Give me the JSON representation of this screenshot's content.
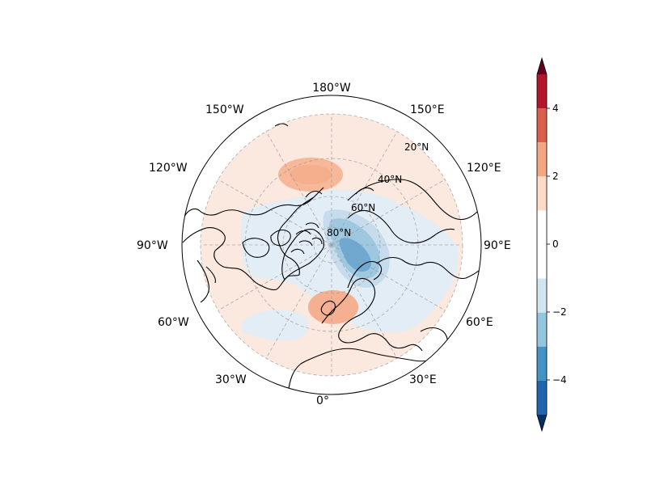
{
  "map": {
    "projection": "north-polar-stereographic",
    "boundary": "circle",
    "central_longitude": 0,
    "field_description": "anomaly field (no title printed)",
    "longitude_labels": [
      "180°W",
      "150°E",
      "120°E",
      "90°E",
      "60°E",
      "30°E",
      "0°",
      "30°W",
      "60°W",
      "90°W",
      "120°W",
      "150°W"
    ],
    "latitude_labels": [
      "20°N",
      "40°N",
      "60°N",
      "80°N"
    ],
    "anomalies": [
      {
        "name": "negative-center-arctic",
        "lon": 85,
        "lat": 78,
        "value": -3.6
      },
      {
        "name": "positive-center-pacific",
        "lon": -170,
        "lat": 48,
        "value": 1.6
      },
      {
        "name": "positive-center-europe",
        "lon": 5,
        "lat": 52,
        "value": 1.7
      }
    ]
  },
  "colorbar": {
    "cmap": "RdBu_r",
    "extend": "both",
    "levels": [
      -5,
      -4,
      -3,
      -2,
      -1,
      1,
      2,
      3,
      4,
      5
    ],
    "ticks": [
      "4",
      "2",
      "0",
      "−2",
      "−4"
    ],
    "colors": {
      "-5": "#053061",
      "-4": "#2166ac",
      "-3": "#4393c3",
      "-2": "#92c5de",
      "-1": "#d1e5f0",
      "0": "#ffffff",
      "1": "#fddbc7",
      "2": "#f4a582",
      "3": "#d6604d",
      "4": "#b2182b",
      "5": "#67001f"
    }
  }
}
